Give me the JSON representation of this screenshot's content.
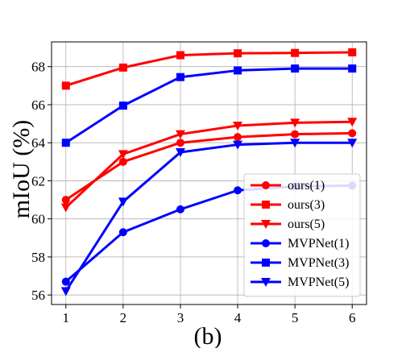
{
  "chart_data": {
    "type": "line",
    "caption": "(b)",
    "xlabel": "",
    "ylabel": "mIoU (%)",
    "x": [
      1,
      2,
      3,
      4,
      5,
      6
    ],
    "xlim": [
      0.75,
      6.25
    ],
    "ylim": [
      55.5,
      69.3
    ],
    "xticks": [
      1,
      2,
      3,
      4,
      5,
      6
    ],
    "yticks": [
      56,
      58,
      60,
      62,
      64,
      66,
      68
    ],
    "grid": true,
    "legend_position": "lower-right",
    "series": [
      {
        "name": "ours(1)",
        "color": "#ff0000",
        "marker": "circle",
        "values": [
          61.0,
          63.0,
          64.0,
          64.3,
          64.45,
          64.5
        ]
      },
      {
        "name": "ours(3)",
        "color": "#ff0000",
        "marker": "square",
        "values": [
          67.0,
          67.95,
          68.6,
          68.7,
          68.72,
          68.75
        ]
      },
      {
        "name": "ours(5)",
        "color": "#ff0000",
        "marker": "triangle-down",
        "values": [
          60.6,
          63.4,
          64.45,
          64.9,
          65.05,
          65.1
        ]
      },
      {
        "name": "MVPNet(1)",
        "color": "#0000ff",
        "marker": "circle",
        "values": [
          56.7,
          59.3,
          60.5,
          61.5,
          61.7,
          61.75
        ]
      },
      {
        "name": "MVPNet(3)",
        "color": "#0000ff",
        "marker": "square",
        "values": [
          64.0,
          65.95,
          67.45,
          67.8,
          67.9,
          67.9
        ]
      },
      {
        "name": "MVPNet(5)",
        "color": "#0000ff",
        "marker": "triangle-down",
        "values": [
          56.2,
          60.9,
          63.5,
          63.9,
          64.0,
          64.0
        ]
      }
    ]
  }
}
